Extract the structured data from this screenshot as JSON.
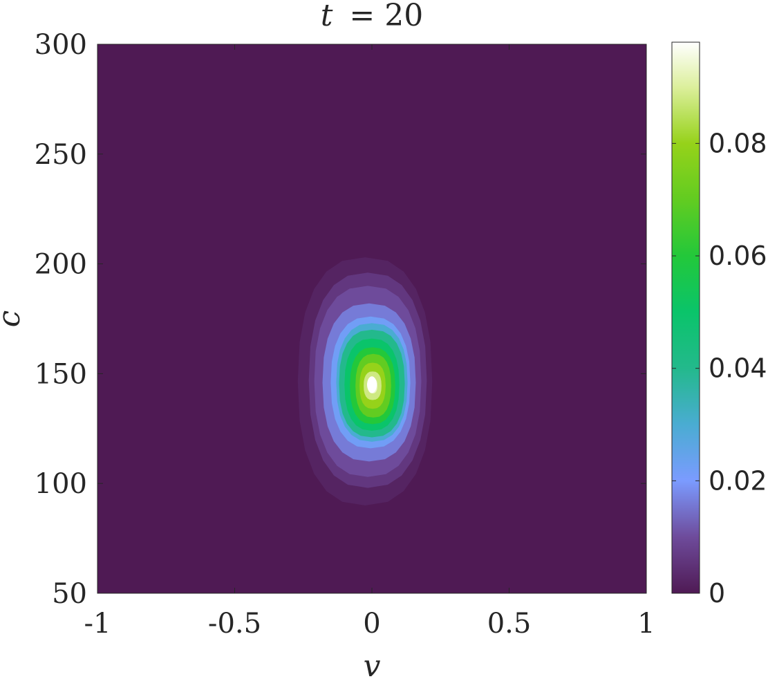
{
  "chart_data": {
    "type": "heatmap",
    "title": "t = 20",
    "title_var": "t",
    "title_value": "= 20",
    "xlabel": "v",
    "ylabel": "c",
    "xlim": [
      -1,
      1
    ],
    "ylim": [
      50,
      300
    ],
    "x_ticks": [
      -1,
      -0.5,
      0,
      0.5,
      1
    ],
    "x_tick_labels": [
      "-1",
      "-0.5",
      "0",
      "0.5",
      "1"
    ],
    "y_ticks": [
      50,
      100,
      150,
      200,
      250,
      300
    ],
    "y_tick_labels": [
      "50",
      "100",
      "150",
      "200",
      "250",
      "300"
    ],
    "colorbar": {
      "range": [
        0,
        0.098
      ],
      "ticks": [
        0,
        0.02,
        0.04,
        0.06,
        0.08
      ],
      "tick_labels": [
        "0",
        "0.02",
        "0.04",
        "0.06",
        "0.08"
      ],
      "colors": [
        {
          "value": 0.0,
          "color": "#4f1a54"
        },
        {
          "value": 0.01,
          "color": "#6e4b9b"
        },
        {
          "value": 0.02,
          "color": "#7b9bff"
        },
        {
          "value": 0.03,
          "color": "#4aacd2"
        },
        {
          "value": 0.04,
          "color": "#23b98c"
        },
        {
          "value": 0.05,
          "color": "#0ac46a"
        },
        {
          "value": 0.06,
          "color": "#23c83a"
        },
        {
          "value": 0.07,
          "color": "#62cc21"
        },
        {
          "value": 0.08,
          "color": "#96d21a"
        },
        {
          "value": 0.09,
          "color": "#dcef9c"
        },
        {
          "value": 0.098,
          "color": "#ffffff"
        }
      ]
    },
    "background_value": 0,
    "peak": {
      "v": 0,
      "c": 145,
      "value": 0.098
    },
    "contour_levels": [
      {
        "value": 0.002,
        "v": [
          -0.27,
          0.22
        ],
        "c": [
          90,
          203
        ]
      },
      {
        "value": 0.006,
        "v": [
          -0.23,
          0.2
        ],
        "c": [
          98,
          196
        ]
      },
      {
        "value": 0.01,
        "v": [
          -0.21,
          0.18
        ],
        "c": [
          103,
          190
        ]
      },
      {
        "value": 0.016,
        "v": [
          -0.18,
          0.16
        ],
        "c": [
          110,
          182
        ]
      },
      {
        "value": 0.022,
        "v": [
          -0.15,
          0.14
        ],
        "c": [
          116,
          176
        ]
      },
      {
        "value": 0.03,
        "v": [
          -0.13,
          0.13
        ],
        "c": [
          119,
          173
        ]
      },
      {
        "value": 0.04,
        "v": [
          -0.12,
          0.12
        ],
        "c": [
          121,
          170
        ]
      },
      {
        "value": 0.05,
        "v": [
          -0.1,
          0.1
        ],
        "c": [
          124,
          166
        ]
      },
      {
        "value": 0.06,
        "v": [
          -0.08,
          0.085
        ],
        "c": [
          127,
          162
        ]
      },
      {
        "value": 0.07,
        "v": [
          -0.06,
          0.07
        ],
        "c": [
          130,
          159
        ]
      },
      {
        "value": 0.08,
        "v": [
          -0.045,
          0.05
        ],
        "c": [
          134,
          155
        ]
      },
      {
        "value": 0.088,
        "v": [
          -0.03,
          0.035
        ],
        "c": [
          138,
          151
        ]
      },
      {
        "value": 0.094,
        "v": [
          -0.015,
          0.02
        ],
        "c": [
          141,
          148
        ]
      }
    ]
  }
}
